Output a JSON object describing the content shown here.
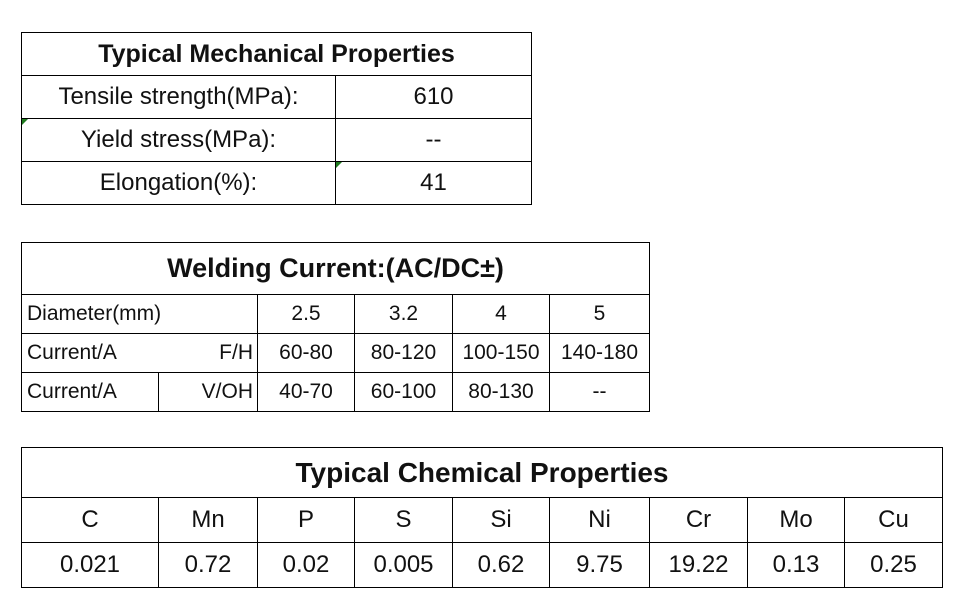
{
  "mechanical": {
    "title": "Typical Mechanical Properties",
    "rows": [
      {
        "label": "Tensile strength(MPa):",
        "value": "610"
      },
      {
        "label": "Yield stress(MPa):",
        "value": "--"
      },
      {
        "label": "Elongation(%):",
        "value": "41"
      }
    ]
  },
  "welding": {
    "title": "Welding Current:(AC/DC±)",
    "header": {
      "label": "Diameter(mm)",
      "values": [
        "2.5",
        "3.2",
        "4",
        "5"
      ]
    },
    "rows": [
      {
        "label": "Current/A",
        "position": "F/H",
        "values": [
          "60-80",
          "80-120",
          "100-150",
          "140-180"
        ]
      },
      {
        "label": "Current/A",
        "position": "V/OH",
        "values": [
          "40-70",
          "60-100",
          "80-130",
          "--"
        ]
      }
    ]
  },
  "chemical": {
    "title": "Typical Chemical Properties",
    "elements": [
      "C",
      "Mn",
      "P",
      "S",
      "Si",
      "Ni",
      "Cr",
      "Mo",
      "Cu"
    ],
    "values": [
      "0.021",
      "0.72",
      "0.02",
      "0.005",
      "0.62",
      "9.75",
      "19.22",
      "0.13",
      "0.25"
    ]
  },
  "colors": {
    "border": "#000000",
    "cell_marker": "#1f7a1f"
  }
}
